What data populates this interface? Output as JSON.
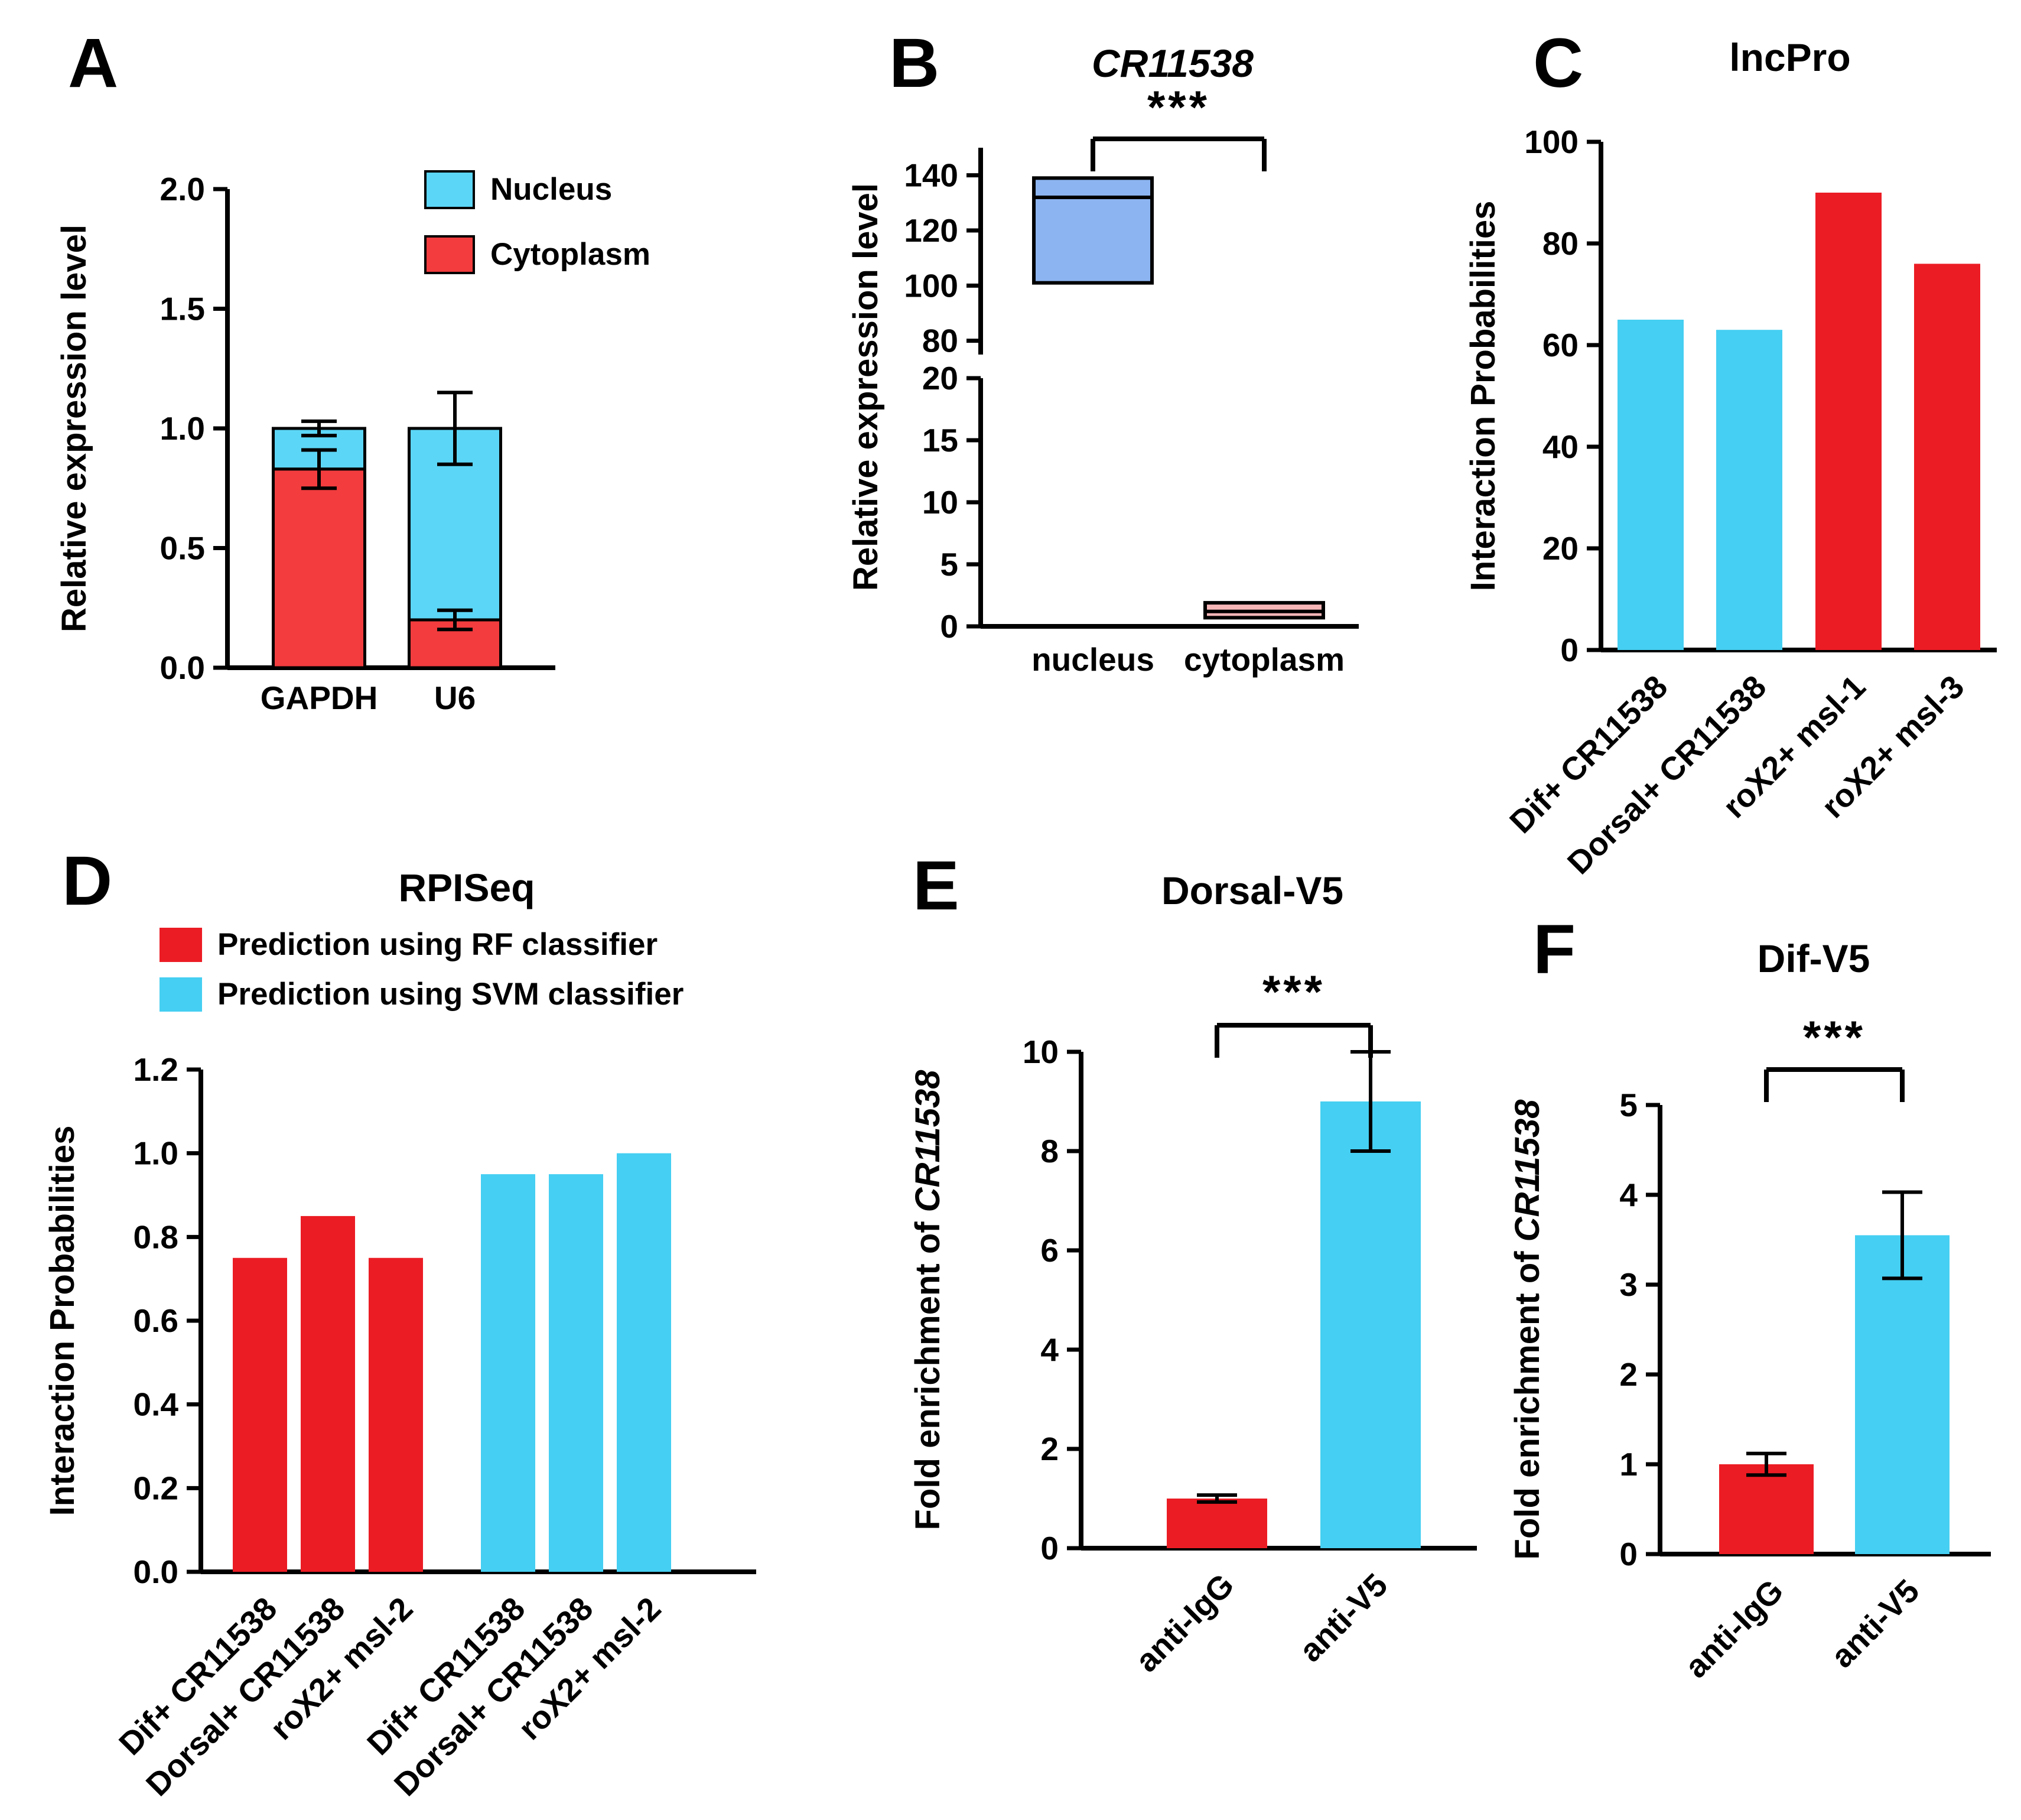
{
  "figure": {
    "panels": [
      {
        "id": "A",
        "letter": "A"
      },
      {
        "id": "B",
        "letter": "B"
      },
      {
        "id": "C",
        "letter": "C"
      },
      {
        "id": "D",
        "letter": "D"
      },
      {
        "id": "E",
        "letter": "E"
      },
      {
        "id": "F",
        "letter": "F"
      }
    ]
  },
  "chart_data": [
    {
      "id": "A",
      "type": "stacked-bar",
      "title": "",
      "ylabel": "Relative expression level",
      "ylim": [
        0,
        2.0
      ],
      "yticks": [
        "0.0",
        "0.5",
        "1.0",
        "1.5",
        "2.0"
      ],
      "categories": [
        "GAPDH",
        "U6"
      ],
      "series": [
        {
          "name": "Cytoplasm",
          "color": "#f23c3e",
          "values": [
            0.83,
            0.2
          ],
          "errors": [
            0.08,
            0.04
          ]
        },
        {
          "name": "Nucleus",
          "color": "#5cd6f6",
          "values": [
            0.17,
            0.8
          ]
        }
      ],
      "totals": [
        1.0,
        1.0
      ],
      "total_errors": [
        0.03,
        0.15
      ],
      "legend": [
        {
          "label": "Nucleus",
          "color": "#5cd6f6"
        },
        {
          "label": "Cytoplasm",
          "color": "#f23c3e"
        }
      ],
      "legend_position": "top-right"
    },
    {
      "id": "B",
      "type": "box-broken",
      "title": "CR11538",
      "title_italic": true,
      "ylabel": "Relative expression level",
      "axis_break": true,
      "upper_axis": {
        "range": [
          75,
          150
        ],
        "ticks": [
          80,
          100,
          120,
          140
        ]
      },
      "lower_axis": {
        "range": [
          0,
          20
        ],
        "ticks": [
          0,
          5,
          10,
          15,
          20
        ]
      },
      "categories": [
        "nucleus",
        "cytoplasm"
      ],
      "boxes": [
        {
          "category": "nucleus",
          "segment": "upper",
          "q1": 101,
          "median": 132,
          "q3": 139,
          "color": "#8cb4f0"
        },
        {
          "category": "cytoplasm",
          "segment": "lower",
          "q1": 0.7,
          "median": 1.2,
          "q3": 1.9,
          "color": "#f6b6b8"
        }
      ],
      "significance": "***"
    },
    {
      "id": "C",
      "type": "bar",
      "title": "lncPro",
      "ylabel": "Interaction Probabilities",
      "ylim": [
        0,
        100
      ],
      "yticks": [
        0,
        20,
        40,
        60,
        80,
        100
      ],
      "categories": [
        "Dif+ CR11538",
        "Dorsal+ CR11538",
        "roX2+ msl-1",
        "roX2+ msl-3"
      ],
      "values": [
        65,
        63,
        90,
        76
      ],
      "colors": [
        "#45cff2",
        "#45cff2",
        "#ec1c24",
        "#ec1c24"
      ],
      "xlabel_rotation": 45
    },
    {
      "id": "D",
      "type": "bar",
      "title": "RPISeq",
      "ylabel": "Interaction Probabilities",
      "ylim": [
        0,
        1.2
      ],
      "yticks": [
        "0.0",
        "0.2",
        "0.4",
        "0.6",
        "0.8",
        "1.0",
        "1.2"
      ],
      "categories": [
        "Dif+ CR11538",
        "Dorsal+ CR11538",
        "roX2+ msl-2",
        "Dif+ CR11538",
        "Dorsal+ CR11538",
        "roX2+ msl-2"
      ],
      "values": [
        0.75,
        0.85,
        0.75,
        0.95,
        0.95,
        1.0
      ],
      "colors": [
        "#ec1c24",
        "#ec1c24",
        "#ec1c24",
        "#45cff2",
        "#45cff2",
        "#45cff2"
      ],
      "legend": [
        {
          "label": "Prediction using RF classifier",
          "color": "#ec1c24"
        },
        {
          "label": "Prediction using SVM classifier",
          "color": "#45cff2"
        }
      ],
      "xlabel_rotation": 45
    },
    {
      "id": "E",
      "type": "bar",
      "title": "Dorsal-V5",
      "ylabel": "Fold enrichment of CR11538",
      "ylabel_parts": [
        {
          "text": "Fold enrichment of "
        },
        {
          "text": "CR11538",
          "italic": true
        }
      ],
      "ylim": [
        0,
        10
      ],
      "yticks": [
        0,
        2,
        4,
        6,
        8,
        10
      ],
      "categories": [
        "anti-IgG",
        "anti-V5"
      ],
      "values": [
        1.0,
        9.0
      ],
      "errors": [
        0.07,
        1.0
      ],
      "colors": [
        "#ec1c24",
        "#45cff2"
      ],
      "significance": "***",
      "xlabel_rotation": 45
    },
    {
      "id": "F",
      "type": "bar",
      "title": "Dif-V5",
      "ylabel": "Fold enrichment of CR11538",
      "ylabel_parts": [
        {
          "text": "Fold enrichment of "
        },
        {
          "text": "CR11538",
          "italic": true
        }
      ],
      "ylim": [
        0,
        5
      ],
      "yticks": [
        0,
        1,
        2,
        3,
        4,
        5
      ],
      "categories": [
        "anti-IgG",
        "anti-V5"
      ],
      "values": [
        1.0,
        3.55
      ],
      "errors": [
        0.12,
        0.48
      ],
      "colors": [
        "#ec1c24",
        "#45cff2"
      ],
      "significance": "***",
      "xlabel_rotation": 45
    }
  ]
}
